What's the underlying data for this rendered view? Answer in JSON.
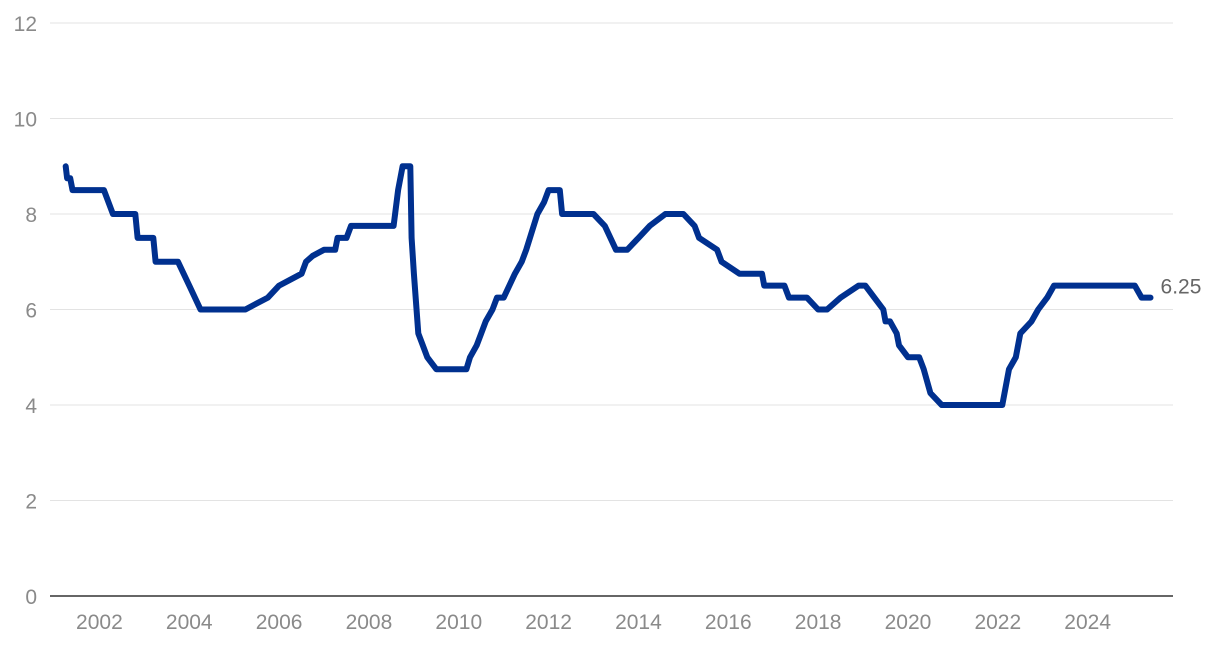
{
  "chart_data": {
    "type": "line",
    "title": "",
    "xlabel": "",
    "ylabel": "",
    "xlim": [
      2000.9,
      2025.9
    ],
    "ylim": [
      0,
      12
    ],
    "grid": true,
    "x_ticks": [
      2002,
      2004,
      2006,
      2008,
      2010,
      2012,
      2014,
      2016,
      2018,
      2020,
      2022,
      2024
    ],
    "x_tick_labels": [
      "2002",
      "2004",
      "2006",
      "2008",
      "2010",
      "2012",
      "2014",
      "2016",
      "2018",
      "2020",
      "2022",
      "2024"
    ],
    "y_ticks": [
      0,
      2,
      4,
      6,
      8,
      10,
      12
    ],
    "y_tick_labels": [
      "0",
      "2",
      "4",
      "6",
      "8",
      "10",
      "12"
    ],
    "end_label": "6.25",
    "series": [
      {
        "color": "#00308f",
        "x": [
          2001.25,
          2001.28,
          2001.35,
          2001.4,
          2001.42,
          2001.8,
          2002.0,
          2002.1,
          2002.3,
          2002.7,
          2002.8,
          2002.85,
          2003.05,
          2003.2,
          2003.25,
          2003.3,
          2003.5,
          2003.75,
          2004.0,
          2004.25,
          2005.0,
          2005.25,
          2005.5,
          2005.75,
          2006.0,
          2006.25,
          2006.5,
          2006.6,
          2006.75,
          2007.0,
          2007.25,
          2007.3,
          2007.5,
          2007.6,
          2007.8,
          2008.0,
          2008.2,
          2008.4,
          2008.55,
          2008.65,
          2008.75,
          2008.92,
          2008.95,
          2009.0,
          2009.1,
          2009.2,
          2009.3,
          2009.5,
          2009.8,
          2010.0,
          2010.17,
          2010.25,
          2010.4,
          2010.5,
          2010.6,
          2010.75,
          2010.85,
          2011.0,
          2011.25,
          2011.4,
          2011.5,
          2011.75,
          2011.9,
          2012.0,
          2012.25,
          2012.3,
          2012.6,
          2013.0,
          2013.25,
          2013.5,
          2013.75,
          2014.0,
          2014.25,
          2014.6,
          2015.0,
          2015.25,
          2015.35,
          2015.75,
          2015.85,
          2016.25,
          2016.35,
          2016.75,
          2016.8,
          2017.25,
          2017.35,
          2017.5,
          2017.75,
          2018.0,
          2018.2,
          2018.35,
          2018.5,
          2018.9,
          2019.0,
          2019.05,
          2019.25,
          2019.45,
          2019.5,
          2019.6,
          2019.75,
          2019.8,
          2020.0,
          2020.25,
          2020.35,
          2020.5,
          2020.75,
          2021.0,
          2021.25,
          2021.5,
          2021.75,
          2022.0,
          2022.1,
          2022.25,
          2022.4,
          2022.5,
          2022.75,
          2022.9,
          2023.1,
          2023.25,
          2023.5,
          2024.0,
          2024.5,
          2024.9,
          2025.05,
          2025.2,
          2025.4
        ],
        "y": [
          9.0,
          8.75,
          8.75,
          8.5,
          8.5,
          8.5,
          8.5,
          8.5,
          8.0,
          8.0,
          8.0,
          7.5,
          7.5,
          7.5,
          7.0,
          7.0,
          7.0,
          7.0,
          6.5,
          6.0,
          6.0,
          6.0,
          6.125,
          6.25,
          6.5,
          6.625,
          6.75,
          7.0,
          7.125,
          7.25,
          7.25,
          7.5,
          7.5,
          7.75,
          7.75,
          7.75,
          7.75,
          7.75,
          7.75,
          8.5,
          9.0,
          9.0,
          7.5,
          6.75,
          5.5,
          5.25,
          5.0,
          4.75,
          4.75,
          4.75,
          4.75,
          5.0,
          5.25,
          5.5,
          5.75,
          6.0,
          6.25,
          6.25,
          6.75,
          7.0,
          7.25,
          8.0,
          8.25,
          8.5,
          8.5,
          8.0,
          8.0,
          8.0,
          7.75,
          7.25,
          7.25,
          7.5,
          7.75,
          8.0,
          8.0,
          7.75,
          7.5,
          7.25,
          7.0,
          6.75,
          6.75,
          6.75,
          6.5,
          6.5,
          6.25,
          6.25,
          6.25,
          6.0,
          6.0,
          6.125,
          6.25,
          6.5,
          6.5,
          6.5,
          6.25,
          6.0,
          5.75,
          5.75,
          5.5,
          5.25,
          5.0,
          5.0,
          4.75,
          4.25,
          4.0,
          4.0,
          4.0,
          4.0,
          4.0,
          4.0,
          4.0,
          4.75,
          5.0,
          5.5,
          5.75,
          6.0,
          6.25,
          6.5,
          6.5,
          6.5,
          6.5,
          6.5,
          6.5,
          6.25,
          6.25
        ]
      }
    ]
  }
}
